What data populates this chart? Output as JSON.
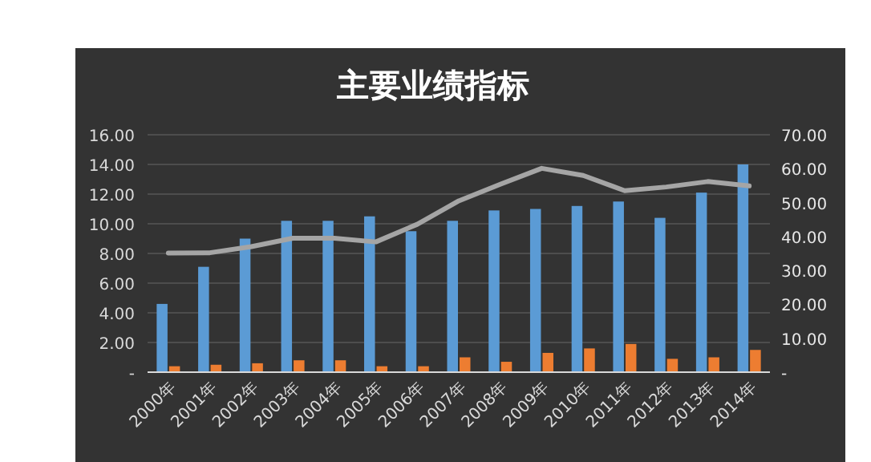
{
  "chart_data": {
    "type": "bar",
    "title": "主要业绩指标",
    "categories": [
      "2000年",
      "2001年",
      "2002年",
      "2003年",
      "2004年",
      "2005年",
      "2006年",
      "2007年",
      "2008年",
      "2009年",
      "2010年",
      "2011年",
      "2012年",
      "2013年",
      "2014年"
    ],
    "series": [
      {
        "color": "#5b9bd5",
        "values": [
          4.6,
          7.1,
          9.0,
          10.2,
          10.2,
          10.5,
          9.5,
          10.2,
          10.9,
          11.0,
          11.2,
          11.5,
          10.4,
          12.1,
          14.0
        ]
      },
      {
        "color": "#ed7d31",
        "values": [
          0.4,
          0.5,
          0.6,
          0.8,
          0.8,
          0.4,
          0.4,
          1.0,
          0.7,
          1.3,
          1.6,
          1.9,
          0.9,
          1.0,
          1.5
        ]
      },
      {
        "type": "line",
        "axis": "y2",
        "color": "#a5a5a5",
        "line_style": "solid",
        "values": [
          35.1,
          35.2,
          37,
          39.5,
          39.5,
          38.4,
          43.6,
          50.5,
          55.4,
          60.1,
          58,
          53.5,
          54.6,
          56.2,
          54.9
        ]
      }
    ],
    "ylim": [
      0,
      16
    ],
    "yticks": [
      {
        "value": 0,
        "label": "-"
      },
      {
        "value": 2,
        "label": "2.00"
      },
      {
        "value": 4,
        "label": "4.00"
      },
      {
        "value": 6,
        "label": "6.00"
      },
      {
        "value": 8,
        "label": "8.00"
      },
      {
        "value": 10,
        "label": "10.00"
      },
      {
        "value": 12,
        "label": "12.00"
      },
      {
        "value": 14,
        "label": "14.00"
      },
      {
        "value": 16,
        "label": "16.00"
      }
    ],
    "y2lim": [
      0,
      70
    ],
    "y2ticks": [
      {
        "value": 0,
        "label": "-"
      },
      {
        "value": 10,
        "label": "10.00"
      },
      {
        "value": 20,
        "label": "20.00"
      },
      {
        "value": 30,
        "label": "30.00"
      },
      {
        "value": 40,
        "label": "40.00"
      },
      {
        "value": 50,
        "label": "50.00"
      },
      {
        "value": 60,
        "label": "60.00"
      },
      {
        "value": 70,
        "label": "70.00"
      }
    ],
    "grid": "y"
  }
}
